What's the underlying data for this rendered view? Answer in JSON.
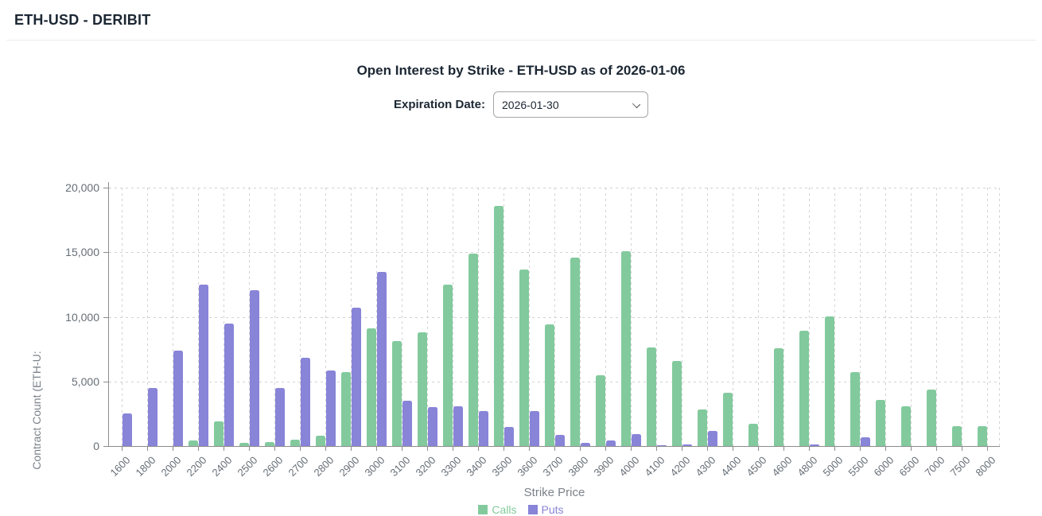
{
  "header": {
    "title": "ETH-USD - DERIBIT"
  },
  "chart": {
    "title": "Open Interest by Strike - ETH-USD as of 2026-01-06",
    "controls": {
      "expiration_label": "Expiration Date:",
      "expiration_value": "2026-01-30"
    },
    "y_axis_title_visible": "Contract Count (ETH-U:",
    "x_axis_title": "Strike Price",
    "accent_colors": {
      "calls": "#82ca9d",
      "puts": "#8884d8"
    }
  },
  "chart_data": {
    "type": "bar",
    "title": "Open Interest by Strike - ETH-USD as of 2026-01-06",
    "xlabel": "Strike Price",
    "ylabel": "Contract Count (ETH-U:",
    "ylim": [
      0,
      20000
    ],
    "grid": true,
    "legend_position": "bottom",
    "y_ticks": [
      {
        "value": 0,
        "label": "0"
      },
      {
        "value": 5000,
        "label": "5,000"
      },
      {
        "value": 10000,
        "label": "10,000"
      },
      {
        "value": 15000,
        "label": "15,000"
      },
      {
        "value": 20000,
        "label": "20,000"
      }
    ],
    "categories": [
      "1600",
      "1800",
      "2000",
      "2200",
      "2400",
      "2500",
      "2600",
      "2700",
      "2800",
      "2900",
      "3000",
      "3100",
      "3200",
      "3300",
      "3400",
      "3500",
      "3600",
      "3700",
      "3800",
      "3900",
      "4000",
      "4100",
      "4200",
      "4300",
      "4400",
      "4500",
      "4600",
      "4800",
      "5000",
      "5500",
      "6000",
      "6500",
      "7000",
      "7500",
      "8000"
    ],
    "series": [
      {
        "name": "Calls",
        "color": "#82ca9d",
        "values": [
          0,
          0,
          0,
          450,
          1900,
          250,
          300,
          500,
          800,
          5700,
          9100,
          8100,
          8800,
          12500,
          14900,
          18600,
          13650,
          9400,
          14600,
          5500,
          15050,
          7600,
          6600,
          2850,
          4100,
          1750,
          7550,
          8950,
          10000,
          5700,
          3550,
          3100,
          4350,
          1550,
          1550
        ]
      },
      {
        "name": "Puts",
        "color": "#8884d8",
        "values": [
          2550,
          4500,
          7400,
          12500,
          9500,
          12050,
          4500,
          6850,
          5850,
          10700,
          13500,
          3500,
          3000,
          3050,
          2700,
          1500,
          2700,
          850,
          250,
          450,
          950,
          50,
          100,
          1150,
          0,
          0,
          0,
          100,
          0,
          650,
          0,
          0,
          0,
          0,
          0
        ]
      }
    ]
  }
}
